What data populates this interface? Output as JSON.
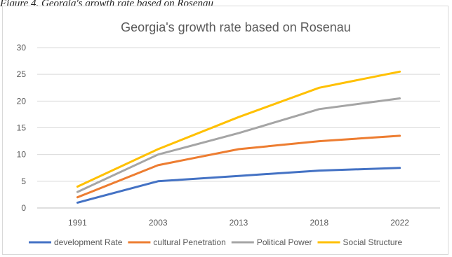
{
  "caption": "Figure 4. Georgia's growth rate based on Rosenau",
  "chart_data": {
    "type": "line",
    "title": "Georgia's growth rate based on Rosenau",
    "xlabel": "",
    "ylabel": "",
    "categories": [
      "1991",
      "2003",
      "2013",
      "2018",
      "2022"
    ],
    "ylim": [
      0,
      30
    ],
    "yticks": [
      0,
      5,
      10,
      15,
      20,
      25,
      30
    ],
    "grid": true,
    "legend_position": "bottom",
    "series": [
      {
        "name": "development Rate",
        "color": "#4472C4",
        "values": [
          1,
          5,
          6,
          7,
          7.5
        ]
      },
      {
        "name": "cultural Penetration",
        "color": "#ED7D31",
        "values": [
          2,
          8,
          11,
          12.5,
          13.5
        ]
      },
      {
        "name": "Political Power",
        "color": "#A5A5A5",
        "values": [
          3,
          10,
          14,
          18.5,
          20.5
        ]
      },
      {
        "name": "Social Structure",
        "color": "#FFC000",
        "values": [
          4,
          11,
          17,
          22.5,
          25.5
        ]
      }
    ]
  }
}
